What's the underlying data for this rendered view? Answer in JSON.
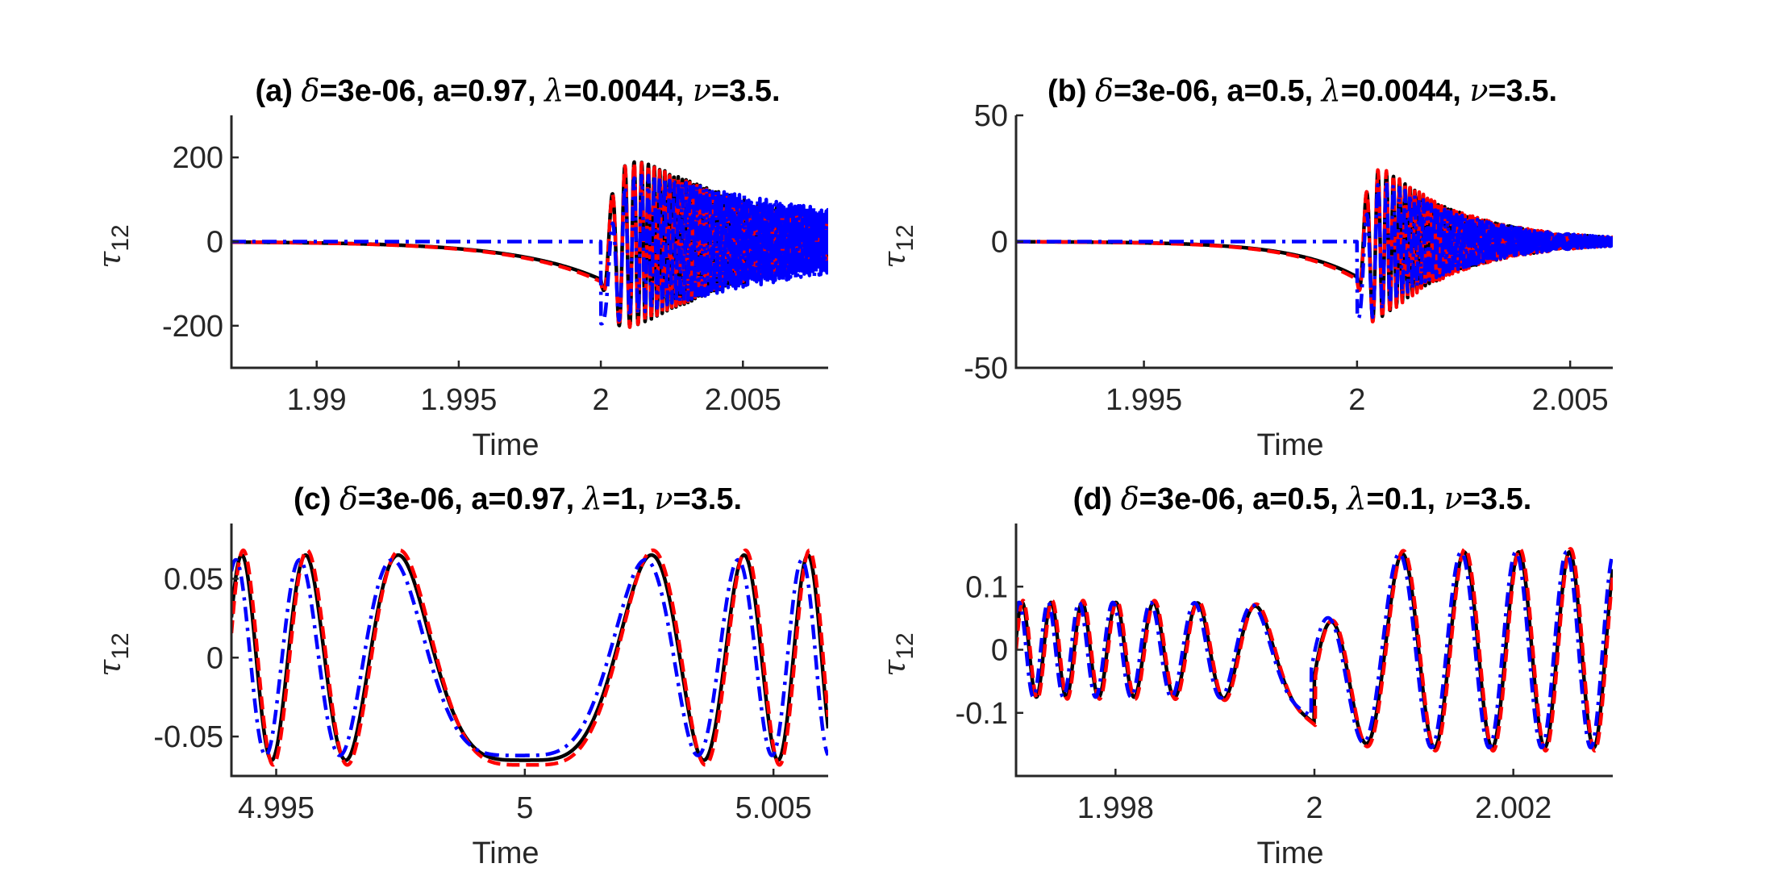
{
  "figure": {
    "background": "#ffffff",
    "colors": {
      "black": "#000000",
      "red": "#ff0000",
      "blue": "#0000ff",
      "axis": "#262626"
    }
  },
  "chart_data": [
    {
      "id": "a",
      "type": "line",
      "title_parts": [
        "(a) ",
        "δ",
        "=3e-06, a=0.97, ",
        "λ",
        "=0.0044, ",
        "ν",
        "=3.5."
      ],
      "xlabel": "Time",
      "ylabel_base": "τ",
      "ylabel_sub": "12",
      "xlim": [
        1.987,
        2.008
      ],
      "ylim": [
        -300,
        300
      ],
      "xticks": [
        1.99,
        1.995,
        2,
        2.005
      ],
      "xtick_labels": [
        "1.99",
        "1.995",
        "2",
        "2.005"
      ],
      "yticks": [
        -200,
        0,
        200
      ],
      "ytick_labels": [
        "-200",
        "0",
        "200"
      ],
      "series": [
        {
          "color": "#000000",
          "style": "solid",
          "params": {
            "kind": "ramp_osc",
            "t0": 2.0,
            "pre_amp": -90,
            "ramp": 0.003,
            "osc_amp": 260,
            "osc_decay": 0.4,
            "period0": 0.0012,
            "chirp": 0.35,
            "peak_t": 2.0012
          }
        },
        {
          "color": "#ff0000",
          "style": "dashed",
          "params": {
            "kind": "ramp_osc",
            "t0": 2.0,
            "pre_amp": -95,
            "ramp": 0.003,
            "osc_amp": 262,
            "osc_decay": 0.42,
            "period0": 0.0012,
            "chirp": 0.35,
            "peak_t": 2.0012
          }
        },
        {
          "color": "#0000ff",
          "style": "dashdot",
          "params": {
            "kind": "jump_osc",
            "t0": 2.0,
            "jump": -195,
            "osc_amp": 200,
            "osc_decay": 0.25,
            "period0": 0.0012,
            "chirp": 0.35,
            "peak_t": 2.0011
          }
        }
      ]
    },
    {
      "id": "b",
      "type": "line",
      "title_parts": [
        "(b) ",
        "δ",
        "=3e-06, a=0.5, ",
        "λ",
        "=0.0044, ",
        "ν",
        "=3.5."
      ],
      "xlabel": "Time",
      "ylabel_base": "τ",
      "ylabel_sub": "12",
      "xlim": [
        1.992,
        2.006
      ],
      "ylim": [
        -50,
        50
      ],
      "xticks": [
        1.995,
        2,
        2.005
      ],
      "xtick_labels": [
        "1.995",
        "2",
        "2.005"
      ],
      "yticks": [
        -50,
        0,
        50
      ],
      "ytick_labels": [
        "-50",
        "0",
        "50"
      ],
      "series": [
        {
          "color": "#000000",
          "style": "solid",
          "params": {
            "kind": "ramp_osc",
            "t0": 2.0,
            "pre_amp": -14,
            "ramp": 0.0015,
            "osc_amp": 42,
            "osc_decay": 0.75,
            "period0": 0.0006,
            "chirp": 0.3,
            "peak_t": 2.0006
          }
        },
        {
          "color": "#ff0000",
          "style": "dashed",
          "params": {
            "kind": "ramp_osc",
            "t0": 2.0,
            "pre_amp": -15,
            "ramp": 0.0015,
            "osc_amp": 43,
            "osc_decay": 0.75,
            "period0": 0.0006,
            "chirp": 0.3,
            "peak_t": 2.0006
          }
        },
        {
          "color": "#0000ff",
          "style": "dashdot",
          "params": {
            "kind": "jump_osc",
            "t0": 2.0,
            "jump": -30,
            "osc_amp": 36,
            "osc_decay": 0.7,
            "period0": 0.0006,
            "chirp": 0.3,
            "peak_t": 2.0006
          }
        }
      ]
    },
    {
      "id": "c",
      "type": "line",
      "title_parts": [
        "(c) ",
        "δ",
        "=3e-06, a=0.97, ",
        "λ",
        "=1, ",
        "ν",
        "=3.5."
      ],
      "xlabel": "Time",
      "ylabel_base": "τ",
      "ylabel_sub": "12",
      "xlim": [
        4.9941,
        5.0061
      ],
      "ylim": [
        -0.075,
        0.085
      ],
      "xticks": [
        4.995,
        5,
        5.005
      ],
      "xtick_labels": [
        "4.995",
        "5",
        "5.005"
      ],
      "yticks": [
        -0.05,
        0,
        0.05
      ],
      "ytick_labels": [
        "-0.05",
        "0",
        "0.05"
      ],
      "series": [
        {
          "color": "#000000",
          "style": "solid",
          "params": {
            "kind": "chirp_sym",
            "center": 5.0,
            "amp": 0.065,
            "k": 0.0012,
            "shift": 0.0
          }
        },
        {
          "color": "#ff0000",
          "style": "dashed",
          "params": {
            "kind": "chirp_sym",
            "center": 5.0,
            "amp": 0.068,
            "k": 0.0012,
            "shift": 3e-05
          }
        },
        {
          "color": "#0000ff",
          "style": "dashdot",
          "params": {
            "kind": "chirp_sym",
            "center": 5.0,
            "amp": 0.062,
            "k": 0.0012,
            "shift": -0.00012
          }
        }
      ]
    },
    {
      "id": "d",
      "type": "line",
      "title_parts": [
        "(d) ",
        "δ",
        "=3e-06, a=0.5, ",
        "λ",
        "=0.1, ",
        "ν",
        "=3.5."
      ],
      "xlabel": "Time",
      "ylabel_base": "τ",
      "ylabel_sub": "12",
      "xlim": [
        1.997,
        2.003
      ],
      "ylim": [
        -0.2,
        0.2
      ],
      "xticks": [
        1.998,
        2,
        2.002
      ],
      "xtick_labels": [
        "1.998",
        "2",
        "2.002"
      ],
      "yticks": [
        -0.1,
        0,
        0.1
      ],
      "ytick_labels": [
        "-0.1",
        "0",
        "0.1"
      ],
      "series": [
        {
          "color": "#000000",
          "style": "solid",
          "params": {
            "kind": "chirp_step",
            "center": 2.0,
            "amp_pre": 0.075,
            "amp_post": 0.155,
            "k": 0.0005,
            "shift": 0.0,
            "dip": -0.07
          }
        },
        {
          "color": "#ff0000",
          "style": "dashed",
          "params": {
            "kind": "chirp_step",
            "center": 2.0,
            "amp_pre": 0.078,
            "amp_post": 0.16,
            "k": 0.0005,
            "shift": 1e-05,
            "dip": -0.07
          }
        },
        {
          "color": "#0000ff",
          "style": "dashdot",
          "params": {
            "kind": "chirp_step",
            "center": 2.0,
            "amp_pre": 0.075,
            "amp_post": 0.155,
            "k": 0.0005,
            "shift": -3e-05,
            "dip": -0.05
          }
        }
      ]
    }
  ]
}
